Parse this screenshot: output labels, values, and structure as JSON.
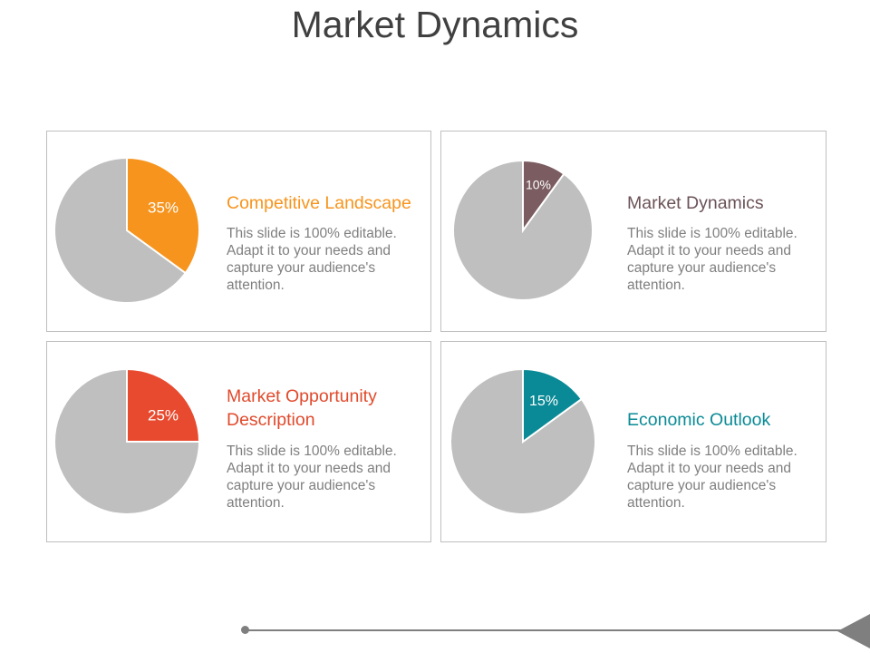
{
  "title": "Market Dynamics",
  "colors": {
    "remainder": "#bfbfbf",
    "orange": "#f7941d",
    "mauve": "#7a5c61",
    "red": "#e84a2f",
    "teal": "#0a8a96"
  },
  "chart_data": [
    {
      "type": "pie",
      "title": "Competitive Landscape",
      "value": 35,
      "label": "35%",
      "color": "#f7941d",
      "heading_color": "#f7941d",
      "remainder_color": "#bfbfbf",
      "body": "This slide is 100% editable. Adapt it to your needs and capture your audience's attention."
    },
    {
      "type": "pie",
      "title": "Market Dynamics",
      "value": 10,
      "label": "10%",
      "color": "#7a5c61",
      "heading_color": "#6b5257",
      "remainder_color": "#bfbfbf",
      "body": "This slide is 100% editable. Adapt it to your needs and capture your audience's attention."
    },
    {
      "type": "pie",
      "title": "Market Opportunity Description",
      "value": 25,
      "label": "25%",
      "color": "#e84a2f",
      "heading_color": "#e04a2c",
      "remainder_color": "#bfbfbf",
      "body": "This slide is 100% editable. Adapt it to your needs and capture your audience's attention."
    },
    {
      "type": "pie",
      "title": "Economic Outlook",
      "value": 15,
      "label": "15%",
      "color": "#0a8a96",
      "heading_color": "#0a8a96",
      "remainder_color": "#bfbfbf",
      "body": "This slide is 100% editable. Adapt it to your needs and capture your audience's attention."
    }
  ]
}
